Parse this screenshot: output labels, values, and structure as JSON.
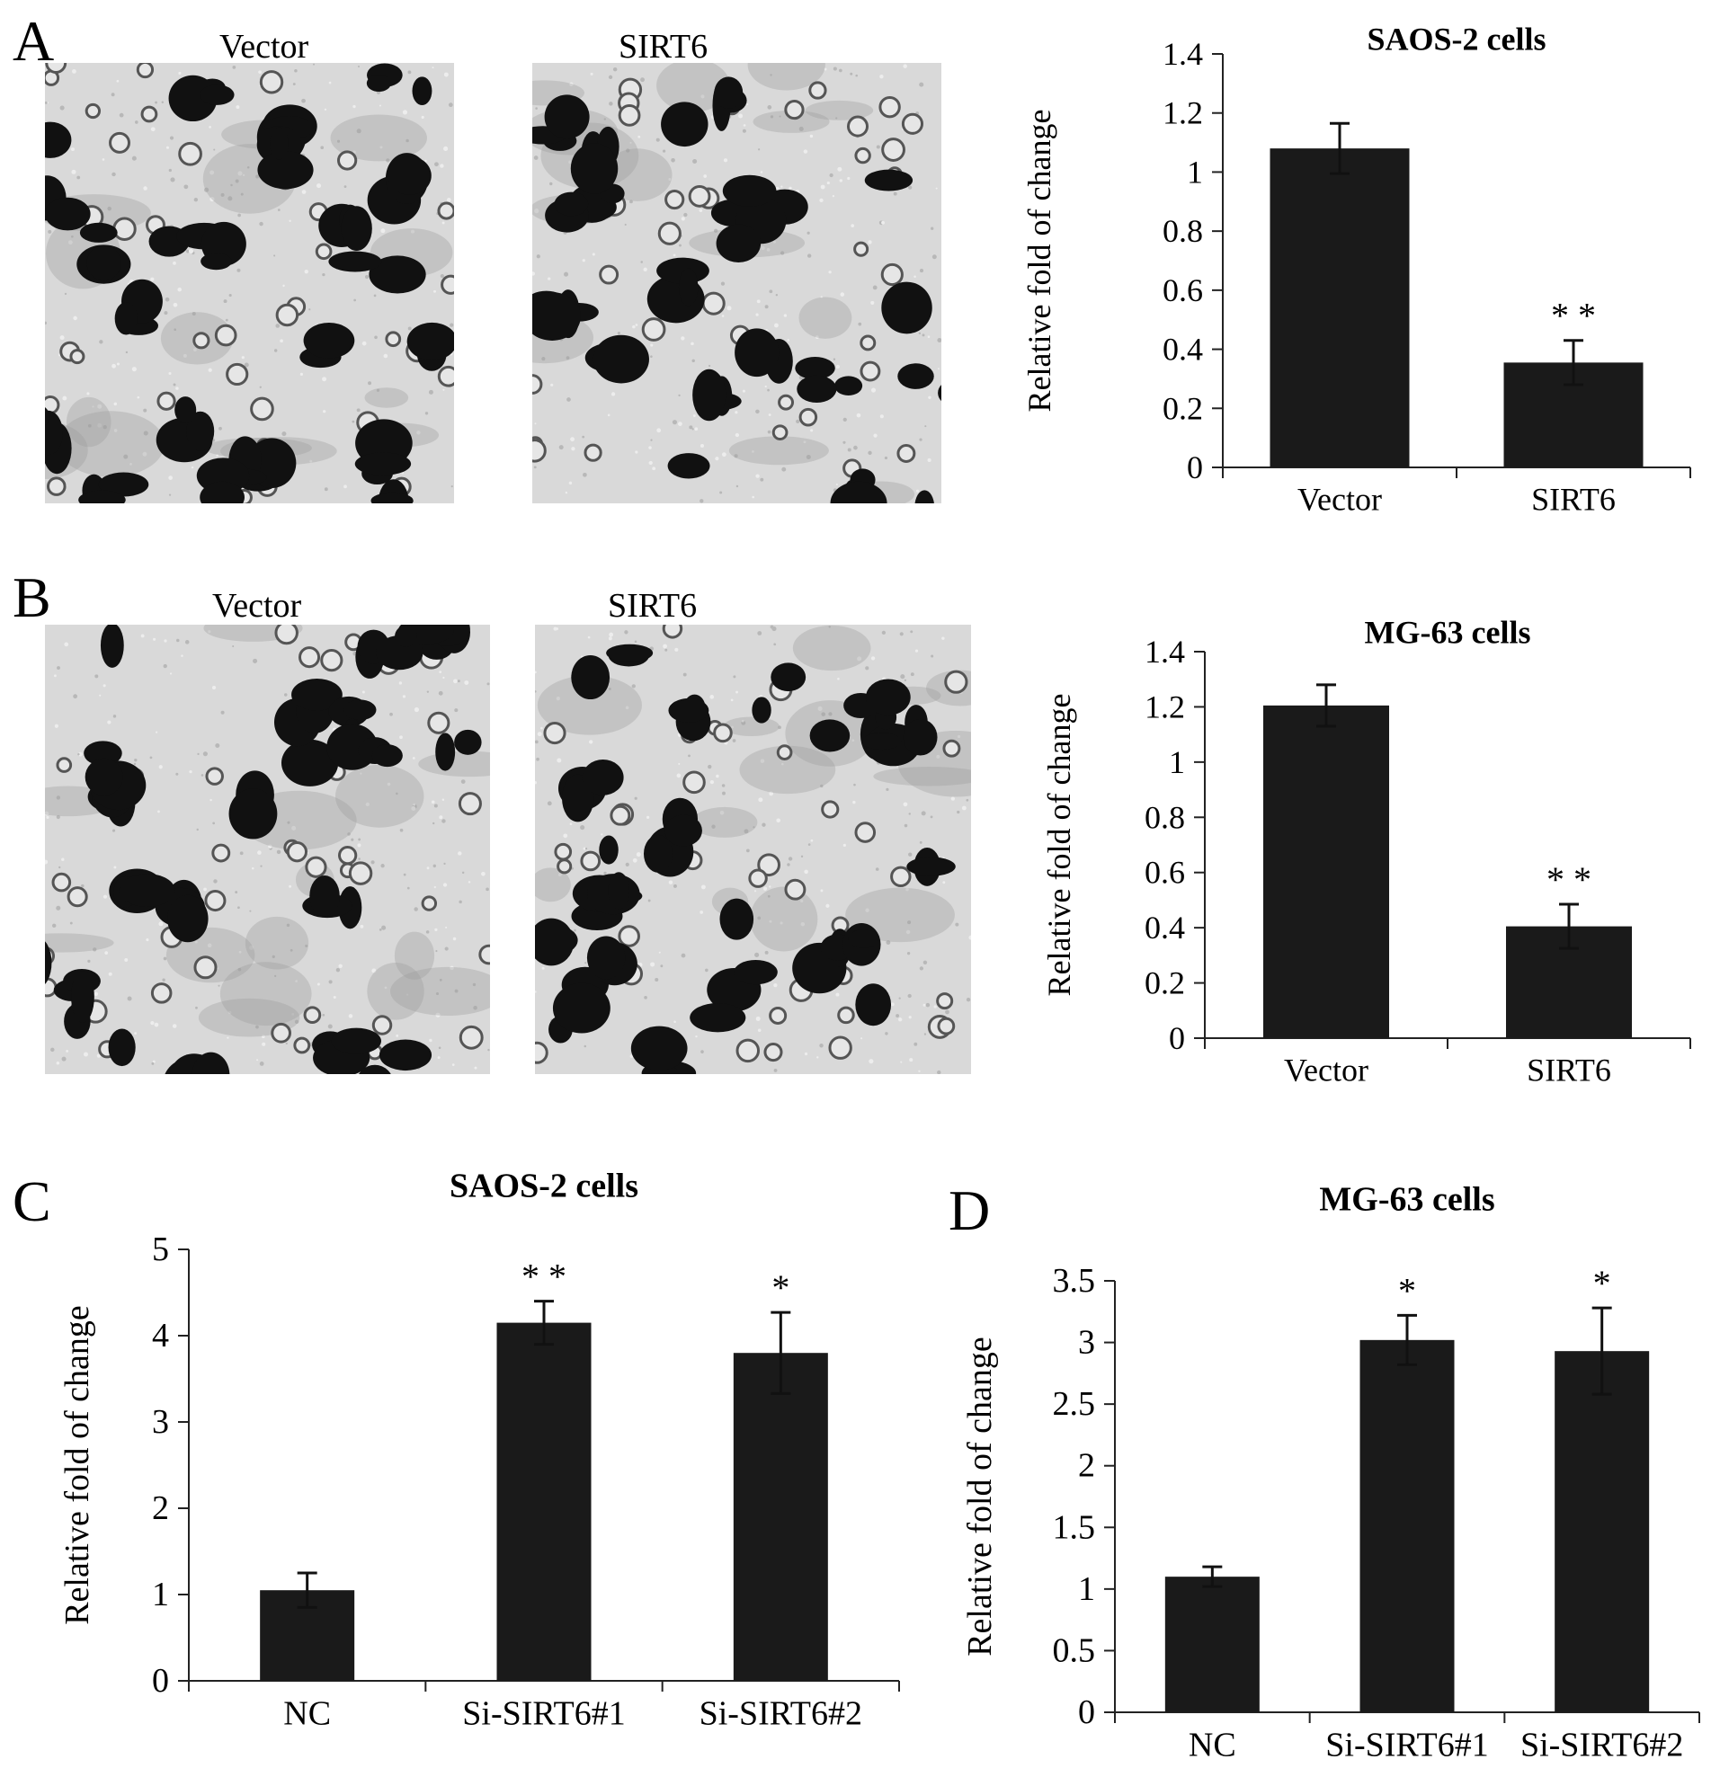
{
  "panels": {
    "a": {
      "letter": "A",
      "left_label": "Vector",
      "right_label": "SIRT6"
    },
    "b": {
      "letter": "B",
      "left_label": "Vector",
      "right_label": "SIRT6"
    },
    "c": {
      "letter": "C"
    },
    "d": {
      "letter": "D"
    }
  },
  "chart_data": [
    {
      "panel": "A",
      "type": "bar",
      "title": "SAOS-2 cells",
      "ylabel": "Relative fold of change",
      "categories": [
        "Vector",
        "SIRT6"
      ],
      "values": [
        1.08,
        0.355
      ],
      "errors": [
        0.085,
        0.075
      ],
      "annotations": [
        "",
        "* *"
      ],
      "ylim": [
        0,
        1.4
      ],
      "yticks": [
        0,
        0.2,
        0.4,
        0.6,
        0.8,
        1,
        1.2,
        1.4
      ],
      "ytick_labels": [
        "0",
        "0.2",
        "0.4",
        "0.6",
        "0.8",
        "1",
        "1.2",
        "1.4"
      ],
      "bar_color": "#1a1a1a",
      "grid": false
    },
    {
      "panel": "B",
      "type": "bar",
      "title": "MG-63 cells",
      "ylabel": "Relative fold of change",
      "categories": [
        "Vector",
        "SIRT6"
      ],
      "values": [
        1.205,
        0.405
      ],
      "errors": [
        0.075,
        0.08
      ],
      "annotations": [
        "",
        "* *"
      ],
      "ylim": [
        0,
        1.4
      ],
      "yticks": [
        0,
        0.2,
        0.4,
        0.6,
        0.8,
        1,
        1.2,
        1.4
      ],
      "ytick_labels": [
        "0",
        "0.2",
        "0.4",
        "0.6",
        "0.8",
        "1",
        "1.2",
        "1.4"
      ],
      "bar_color": "#1a1a1a",
      "grid": false
    },
    {
      "panel": "C",
      "type": "bar",
      "title": "SAOS-2 cells",
      "ylabel": "Relative fold of change",
      "categories": [
        "NC",
        "Si-SIRT6#1",
        "Si-SIRT6#2"
      ],
      "values": [
        1.05,
        4.15,
        3.8
      ],
      "errors": [
        0.2,
        0.25,
        0.47
      ],
      "annotations": [
        "",
        "* *",
        "*"
      ],
      "ylim": [
        0,
        5
      ],
      "yticks": [
        0,
        1,
        2,
        3,
        4,
        5
      ],
      "ytick_labels": [
        "0",
        "1",
        "2",
        "3",
        "4",
        "5"
      ],
      "bar_color": "#1a1a1a",
      "grid": false
    },
    {
      "panel": "D",
      "type": "bar",
      "title": "MG-63 cells",
      "ylabel": "Relative fold of change",
      "categories": [
        "NC",
        "Si-SIRT6#1",
        "Si-SIRT6#2"
      ],
      "values": [
        1.1,
        3.02,
        2.93
      ],
      "errors": [
        0.08,
        0.2,
        0.35
      ],
      "annotations": [
        "",
        "*",
        "*"
      ],
      "ylim": [
        0,
        3.5
      ],
      "yticks": [
        0,
        0.5,
        1,
        1.5,
        2,
        2.5,
        3,
        3.5
      ],
      "ytick_labels": [
        "0",
        "0.5",
        "1",
        "1.5",
        "2",
        "2.5",
        "3",
        "3.5"
      ],
      "bar_color": "#1a1a1a",
      "grid": false
    }
  ]
}
